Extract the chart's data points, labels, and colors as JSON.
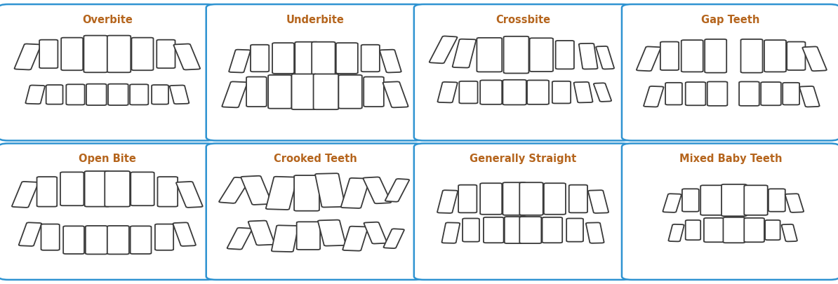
{
  "panels": [
    {
      "title": "Overbite",
      "row": 0,
      "col": 0,
      "style": "overbite"
    },
    {
      "title": "Underbite",
      "row": 0,
      "col": 1,
      "style": "underbite"
    },
    {
      "title": "Crossbite",
      "row": 0,
      "col": 2,
      "style": "crossbite"
    },
    {
      "title": "Gap Teeth",
      "row": 0,
      "col": 3,
      "style": "gapteeth"
    },
    {
      "title": "Open Bite",
      "row": 1,
      "col": 0,
      "style": "openbite"
    },
    {
      "title": "Crooked Teeth",
      "row": 1,
      "col": 1,
      "style": "crooked"
    },
    {
      "title": "Generally Straight",
      "row": 1,
      "col": 2,
      "style": "straight"
    },
    {
      "title": "Mixed Baby Teeth",
      "row": 1,
      "col": 3,
      "style": "mixed"
    }
  ],
  "bg_color": "#ffffff",
  "panel_bg": "#ffffff",
  "panel_border_color": "#2e93d1",
  "title_color": "#b5651d",
  "tooth_fill": "#ffffff",
  "tooth_line": "#3a3a3a",
  "title_fontsize": 10.5,
  "lw": 1.3,
  "ncols": 4,
  "nrows": 2,
  "fig_w": 11.94,
  "fig_h": 4.05,
  "dpi": 100
}
